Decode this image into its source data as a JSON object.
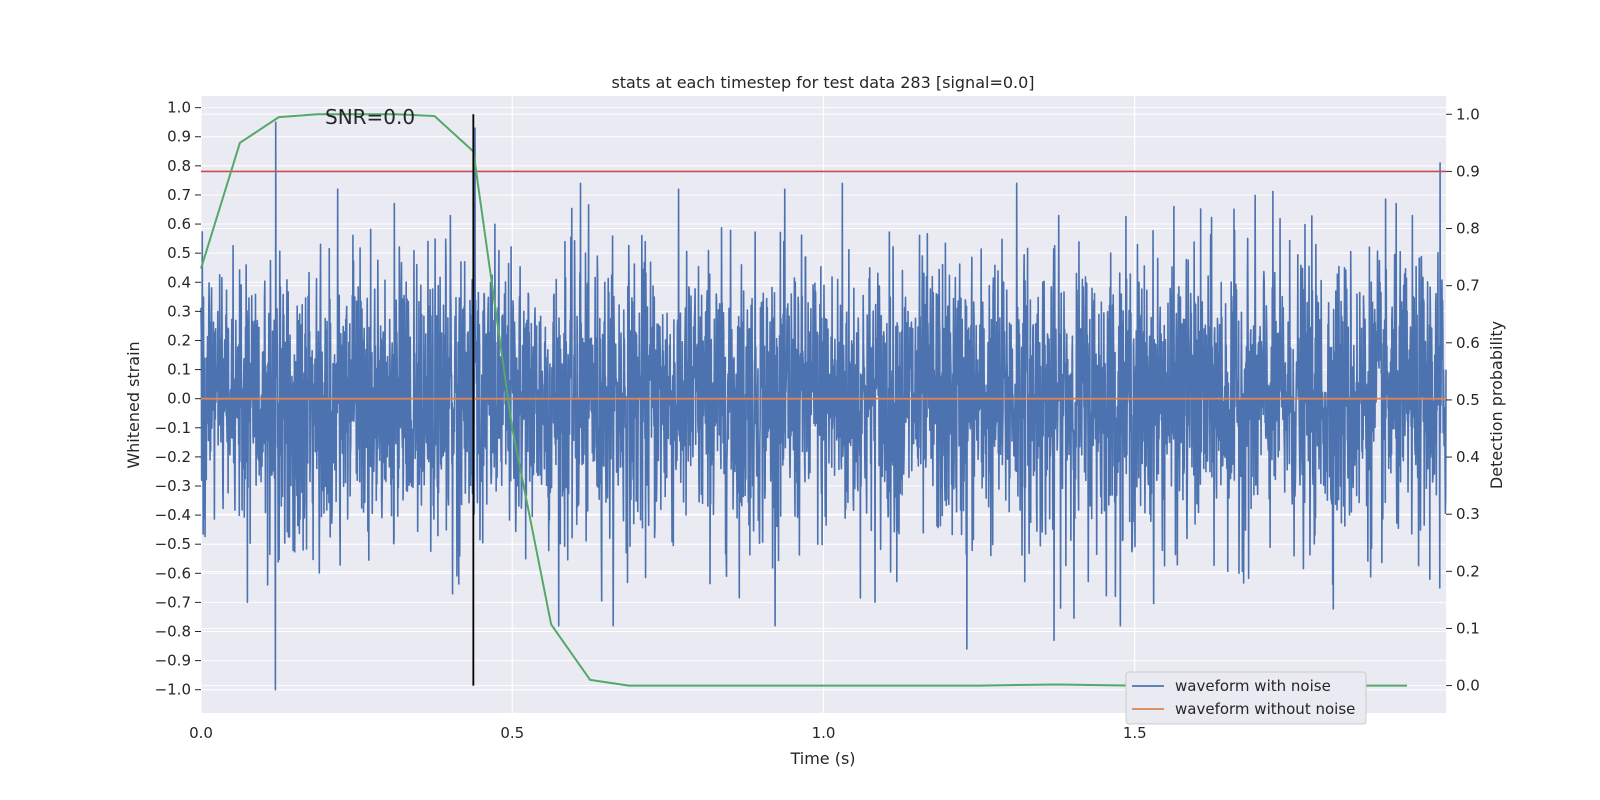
{
  "chart_data": {
    "type": "line",
    "title": "stats at each timestep for test data 283 [signal=0.0]",
    "xlabel": "Time (s)",
    "ylabel_left": "Whitened strain",
    "ylabel_right": "Detection probability",
    "xlim": [
      0.0,
      2.0
    ],
    "ylim_left": [
      -1.08,
      1.04
    ],
    "ylim_right": [
      -0.048,
      1.032
    ],
    "xticks": [
      "0.0",
      "0.5",
      "1.0",
      "1.5"
    ],
    "yticks_left": [
      "-1.0",
      "-0.9",
      "-0.8",
      "-0.7",
      "-0.6",
      "-0.5",
      "-0.4",
      "-0.3",
      "-0.2",
      "-0.1",
      "0.0",
      "0.1",
      "0.2",
      "0.3",
      "0.4",
      "0.5",
      "0.6",
      "0.7",
      "0.8",
      "0.9",
      "1.0"
    ],
    "yticks_right": [
      "0.0",
      "0.1",
      "0.2",
      "0.3",
      "0.4",
      "0.5",
      "0.6",
      "0.7",
      "0.8",
      "0.9",
      "1.0"
    ],
    "grid": true,
    "legend_placement": "lower-right",
    "annotation": "SNR=0.0",
    "series": [
      {
        "name": "waveform with noise",
        "axis": "left",
        "color": "#4c72b0",
        "note_samples": 4000,
        "peaks": [
          {
            "x": 0.12,
            "y": 0.95
          },
          {
            "x": 0.12,
            "y": -1.0
          },
          {
            "x": 0.44,
            "y": 0.93
          },
          {
            "x": 0.61,
            "y": 0.74
          },
          {
            "x": 1.03,
            "y": 0.74
          },
          {
            "x": 1.31,
            "y": 0.74
          },
          {
            "x": 1.99,
            "y": 0.81
          },
          {
            "x": 1.99,
            "y": -0.65
          },
          {
            "x": 1.23,
            "y": -0.86
          },
          {
            "x": 1.37,
            "y": -0.83
          }
        ]
      },
      {
        "name": "waveform without noise",
        "axis": "left",
        "color": "#dd8452",
        "x": [
          0.0,
          2.0
        ],
        "y": [
          0.0,
          0.0
        ]
      },
      {
        "name": "",
        "axis": "right",
        "color": "#55a868",
        "x": [
          0.0,
          0.0625,
          0.125,
          0.1875,
          0.25,
          0.3125,
          0.375,
          0.4375,
          0.5,
          0.5625,
          0.625,
          0.6875,
          0.75,
          1.0,
          1.25,
          1.375,
          1.5,
          1.75,
          1.9375
        ],
        "y": [
          0.73,
          0.95,
          0.995,
          1.0,
          1.0,
          1.0,
          0.997,
          0.935,
          0.45,
          0.107,
          0.01,
          0.0,
          0.0,
          0.0,
          0.0,
          0.002,
          0.0,
          0.0,
          0.0
        ]
      },
      {
        "name": "",
        "axis": "right",
        "color": "#c44e52",
        "x": [
          0.0,
          2.0
        ],
        "y": [
          0.9,
          0.9
        ]
      },
      {
        "name": "",
        "axis": "right",
        "color": "#000000",
        "type": "vline",
        "x": 0.4375,
        "y": [
          0.0,
          1.0
        ]
      }
    ]
  }
}
